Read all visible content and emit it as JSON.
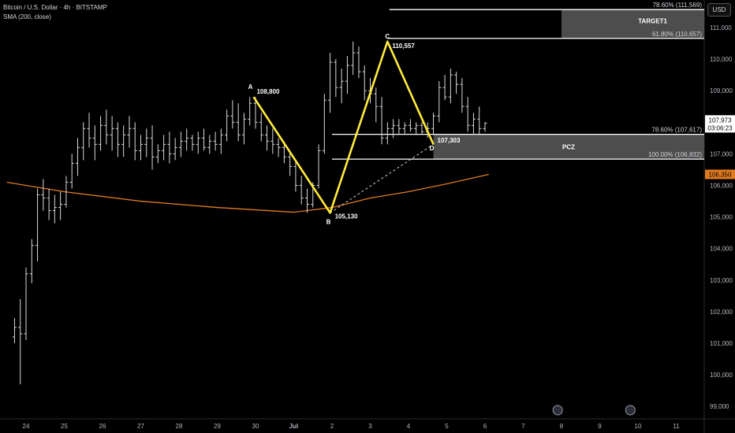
{
  "header": {
    "symbol_line": "Bitcoin / U.S. Dollar · 4h · BITSTAMP",
    "indicator_line": "SMA (200, close)"
  },
  "currency_button": "USD",
  "colors": {
    "background": "#000000",
    "bar": "#d9d9d9",
    "pattern": "#ffeb3b",
    "sma": "#e07a1f",
    "zone": "#5a5a5a",
    "price_tag": "#ffffff",
    "sma_tag": "#e07a1f"
  },
  "chart_data": {
    "type": "ohlc",
    "title": "Bitcoin / U.S. Dollar · 4h · BITSTAMP",
    "x_ticks": [
      "24",
      "25",
      "26",
      "27",
      "28",
      "29",
      "30",
      "Jul",
      "2",
      "3",
      "4",
      "5",
      "6",
      "7",
      "8",
      "9",
      "10",
      "11"
    ],
    "x_tick_days": [
      0,
      1,
      2,
      3,
      4,
      5,
      6,
      7,
      8,
      9,
      10,
      11,
      12,
      13,
      14,
      15,
      16,
      17
    ],
    "y_ticks": [
      "111,000",
      "110,000",
      "109,000",
      "108,000",
      "107,000",
      "106,000",
      "105,000",
      "104,000",
      "103,000",
      "102,000",
      "101,000",
      "100,000",
      "99,000"
    ],
    "y_tick_values": [
      111000,
      110000,
      109000,
      108000,
      107000,
      106000,
      105000,
      104000,
      103000,
      102000,
      101000,
      100000,
      99000
    ],
    "ylim": [
      98800,
      112000
    ],
    "price_bars": [
      [
        -0.3,
        101200,
        101800,
        101000,
        101500
      ],
      [
        -0.15,
        101500,
        102400,
        99700,
        101300
      ],
      [
        0.0,
        101300,
        103400,
        101100,
        103200
      ],
      [
        0.15,
        103200,
        104300,
        102900,
        104100
      ],
      [
        0.3,
        104100,
        105900,
        103600,
        105700
      ],
      [
        0.45,
        105700,
        106200,
        105200,
        105600
      ],
      [
        0.6,
        105600,
        105900,
        104900,
        105200
      ],
      [
        0.75,
        105200,
        105700,
        104800,
        105300
      ],
      [
        0.9,
        105300,
        105800,
        104900,
        105400
      ],
      [
        1.05,
        105400,
        106300,
        105300,
        106100
      ],
      [
        1.2,
        106100,
        107000,
        105900,
        106700
      ],
      [
        1.35,
        106700,
        107500,
        106300,
        107200
      ],
      [
        1.5,
        107200,
        108000,
        106800,
        107800
      ],
      [
        1.65,
        107800,
        108300,
        107200,
        107500
      ],
      [
        1.8,
        107500,
        107900,
        106800,
        107300
      ],
      [
        1.95,
        107300,
        108200,
        107100,
        107900
      ],
      [
        2.1,
        107900,
        108400,
        107300,
        107600
      ],
      [
        2.25,
        107600,
        108200,
        107100,
        107800
      ],
      [
        2.4,
        107800,
        108000,
        106900,
        107300
      ],
      [
        2.55,
        107300,
        107900,
        106900,
        107600
      ],
      [
        2.7,
        107600,
        108200,
        107200,
        107800
      ],
      [
        2.85,
        107800,
        108000,
        106800,
        107100
      ],
      [
        3.0,
        107100,
        107600,
        106800,
        107300
      ],
      [
        3.15,
        107300,
        107800,
        106900,
        107500
      ],
      [
        3.3,
        107500,
        107900,
        106500,
        106900
      ],
      [
        3.45,
        106900,
        107300,
        106700,
        107100
      ],
      [
        3.6,
        107100,
        107600,
        106800,
        107300
      ],
      [
        3.75,
        107300,
        107700,
        106700,
        107000
      ],
      [
        3.9,
        107000,
        107500,
        106800,
        107200
      ],
      [
        4.05,
        107200,
        107700,
        106900,
        107400
      ],
      [
        4.2,
        107400,
        107800,
        107100,
        107500
      ],
      [
        4.35,
        107500,
        107600,
        107100,
        107300
      ],
      [
        4.5,
        107300,
        107700,
        107000,
        107500
      ],
      [
        4.65,
        107500,
        107800,
        107100,
        107200
      ],
      [
        4.8,
        107200,
        107600,
        107000,
        107400
      ],
      [
        4.95,
        107400,
        107700,
        107100,
        107300
      ],
      [
        5.1,
        107300,
        107800,
        107000,
        107600
      ],
      [
        5.25,
        107600,
        108400,
        107400,
        108200
      ],
      [
        5.4,
        108200,
        108700,
        107800,
        108000
      ],
      [
        5.55,
        108000,
        108600,
        107400,
        107600
      ],
      [
        5.7,
        107600,
        108300,
        107300,
        108100
      ],
      [
        5.85,
        108100,
        108800,
        107900,
        108600
      ],
      [
        6.0,
        108600,
        108800,
        107800,
        108000
      ],
      [
        6.15,
        108000,
        108300,
        107400,
        107600
      ],
      [
        6.3,
        107600,
        107900,
        107100,
        107400
      ],
      [
        6.45,
        107400,
        107800,
        107000,
        107300
      ],
      [
        6.6,
        107300,
        107500,
        106900,
        107200
      ],
      [
        6.75,
        107200,
        107400,
        106700,
        106900
      ],
      [
        6.9,
        106900,
        107100,
        106300,
        106600
      ],
      [
        7.05,
        106600,
        106800,
        105800,
        106000
      ],
      [
        7.2,
        106000,
        106300,
        105400,
        105600
      ],
      [
        7.35,
        105600,
        105900,
        105130,
        105400
      ],
      [
        7.5,
        105400,
        106100,
        105300,
        106000
      ],
      [
        7.65,
        106000,
        107300,
        105900,
        107100
      ],
      [
        7.8,
        107100,
        108900,
        107000,
        108700
      ],
      [
        7.95,
        108700,
        110200,
        108300,
        109900
      ],
      [
        8.1,
        109900,
        110000,
        108800,
        109100
      ],
      [
        8.25,
        109100,
        109700,
        108600,
        109300
      ],
      [
        8.4,
        109300,
        110100,
        108900,
        109800
      ],
      [
        8.55,
        109800,
        110557,
        109500,
        110200
      ],
      [
        8.7,
        110200,
        110400,
        109400,
        109600
      ],
      [
        8.85,
        109600,
        109800,
        108700,
        109000
      ],
      [
        9.0,
        109000,
        109400,
        108600,
        108900
      ],
      [
        9.15,
        108900,
        109100,
        108000,
        108500
      ],
      [
        9.3,
        108500,
        108800,
        107303,
        107500
      ],
      [
        9.45,
        107500,
        108000,
        107300,
        107800
      ],
      [
        9.6,
        107800,
        108100,
        107500,
        107900
      ],
      [
        9.75,
        107900,
        108100,
        107600,
        107800
      ],
      [
        9.9,
        107800,
        108000,
        107600,
        107900
      ],
      [
        10.05,
        107900,
        108100,
        107700,
        107800
      ],
      [
        10.2,
        107800,
        108000,
        107600,
        107900
      ],
      [
        10.35,
        107900,
        108000,
        107600,
        107700
      ],
      [
        10.5,
        107700,
        108000,
        107500,
        107800
      ],
      [
        10.65,
        107800,
        108300,
        107600,
        108200
      ],
      [
        10.8,
        108200,
        109300,
        108000,
        109100
      ],
      [
        10.95,
        109100,
        109500,
        108700,
        108800
      ],
      [
        11.1,
        108800,
        109700,
        108600,
        109500
      ],
      [
        11.25,
        109500,
        109600,
        108900,
        109200
      ],
      [
        11.4,
        109200,
        109400,
        108300,
        108500
      ],
      [
        11.55,
        108500,
        108800,
        107700,
        107900
      ],
      [
        11.7,
        107900,
        108300,
        107600,
        108100
      ],
      [
        11.85,
        108100,
        108500,
        107600,
        107800
      ],
      [
        12.0,
        107800,
        108000,
        107700,
        107973
      ]
    ],
    "sma_points": [
      [
        -0.5,
        106100
      ],
      [
        1.0,
        105800
      ],
      [
        3.0,
        105500
      ],
      [
        5.0,
        105300
      ],
      [
        7.0,
        105150
      ],
      [
        8.0,
        105300
      ],
      [
        9.0,
        105600
      ],
      [
        10.0,
        105800
      ],
      [
        11.0,
        106050
      ],
      [
        12.1,
        106350
      ]
    ],
    "pattern_points": [
      {
        "label": "A",
        "value_label": "108,800",
        "x": 5.95,
        "y": 108800
      },
      {
        "label": "B",
        "value_label": "105,130",
        "x": 7.95,
        "y": 105130
      },
      {
        "label": "C",
        "value_label": "110,557",
        "x": 9.45,
        "y": 110557
      },
      {
        "label": "D",
        "value_label": "107,303",
        "x": 10.65,
        "y": 107303
      }
    ],
    "bd_dashed": {
      "from": "B",
      "to": "D"
    },
    "fib_lines": [
      {
        "label": "78.60% (111,569)",
        "value": 111569,
        "x_start": 9.5
      },
      {
        "label": "61.80% (110,657)",
        "value": 110657,
        "x_start": 9.45
      },
      {
        "label": "78.60% (107,617)",
        "value": 107617,
        "x_start": 8.0
      },
      {
        "label": "100.00% (106,832)",
        "value": 106832,
        "x_start": 8.0
      }
    ],
    "zones": [
      {
        "name": "TARGET1",
        "label": "TARGET1",
        "y_top": 111569,
        "y_bottom": 110657,
        "x_start": 14.0
      },
      {
        "name": "PCZ",
        "label": "PCZ",
        "y_top": 107617,
        "y_bottom": 106832,
        "x_start": 10.65
      }
    ],
    "last_price": {
      "value": "107,973",
      "countdown": "03:06:23"
    },
    "sma_last": "106,350",
    "event_icons": [
      {
        "name": "dividends-icon",
        "x": 13.9
      },
      {
        "name": "earnings-icon",
        "x": 15.8
      }
    ]
  }
}
